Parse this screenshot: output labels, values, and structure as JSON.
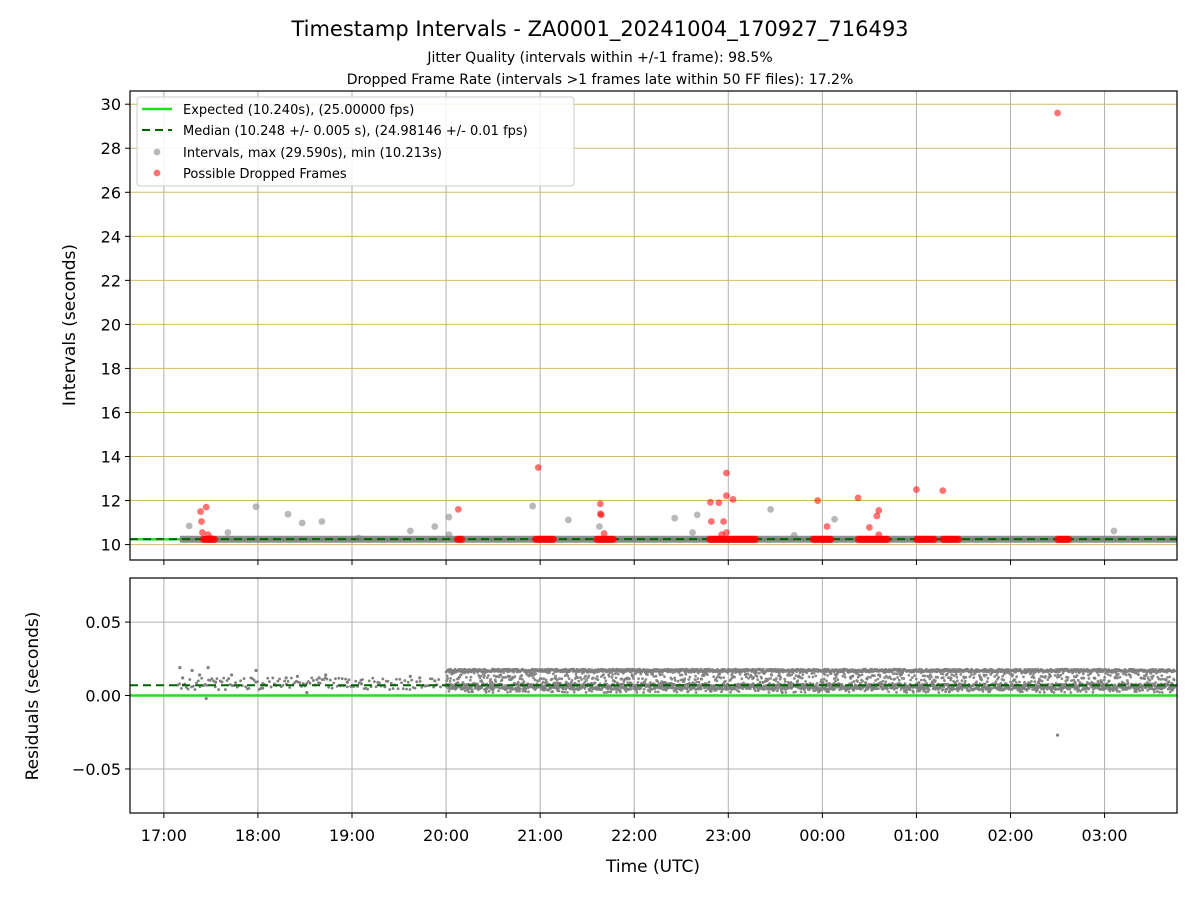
{
  "chart_data": [
    {
      "type": "scatter",
      "title": "Timestamp Intervals - ZA0001_20241004_170927_716493",
      "subtitle_lines": [
        "Jitter Quality (intervals within +/-1 frame): 98.5%",
        "Dropped Frame Rate (intervals >1 frames late within 50 FF files): 17.2%"
      ],
      "ylabel": "Intervals (seconds)",
      "ylim": [
        9.3,
        30.6
      ],
      "yticks": [
        "10",
        "12",
        "14",
        "16",
        "18",
        "20",
        "22",
        "24",
        "26",
        "28",
        "30"
      ],
      "grid": true,
      "legend_position": "top-left",
      "legend": [
        "Expected (10.240s), (25.00000 fps)",
        "Median (10.248 +/- 0.005 s), (24.98146 +/- 0.01 fps)",
        "Intervals, max (29.590s), min (10.213s)",
        "Possible Dropped Frames"
      ],
      "expected": 10.24,
      "median": 10.248,
      "series": [
        {
          "name": "Intervals, max (29.590s), min (10.213s)",
          "color": "#808080",
          "points": [
            [
              17.27,
              10.85
            ],
            [
              17.5,
              10.3
            ],
            [
              17.68,
              10.55
            ],
            [
              17.98,
              11.72
            ],
            [
              18.32,
              11.38
            ],
            [
              18.47,
              10.98
            ],
            [
              18.68,
              11.05
            ],
            [
              19.07,
              10.3
            ],
            [
              19.62,
              10.62
            ],
            [
              19.88,
              10.82
            ],
            [
              20.03,
              11.25
            ],
            [
              20.03,
              10.45
            ],
            [
              20.92,
              11.75
            ],
            [
              21.3,
              11.12
            ],
            [
              21.63,
              10.82
            ],
            [
              22.43,
              11.2
            ],
            [
              22.62,
              10.55
            ],
            [
              22.67,
              11.35
            ],
            [
              23.45,
              11.6
            ],
            [
              23.7,
              10.42
            ],
            [
              24.13,
              11.15
            ],
            [
              27.1,
              10.62
            ]
          ]
        },
        {
          "name": "Possible Dropped Frames",
          "color": "#ff0000",
          "points": [
            [
              17.39,
              11.5
            ],
            [
              17.4,
              11.05
            ],
            [
              17.41,
              10.55
            ],
            [
              17.45,
              11.7
            ],
            [
              17.47,
              10.45
            ],
            [
              20.13,
              11.6
            ],
            [
              20.98,
              13.5
            ],
            [
              21.64,
              11.85
            ],
            [
              21.64,
              11.4
            ],
            [
              21.65,
              11.35
            ],
            [
              21.68,
              10.5
            ],
            [
              22.82,
              11.05
            ],
            [
              22.81,
              11.92
            ],
            [
              22.9,
              11.9
            ],
            [
              22.95,
              11.05
            ],
            [
              22.98,
              13.25
            ],
            [
              22.98,
              12.22
            ],
            [
              22.93,
              10.45
            ],
            [
              22.98,
              10.55
            ],
            [
              23.05,
              12.05
            ],
            [
              23.95,
              12.0
            ],
            [
              24.05,
              10.82
            ],
            [
              24.38,
              12.12
            ],
            [
              24.5,
              10.78
            ],
            [
              24.58,
              11.3
            ],
            [
              24.6,
              11.55
            ],
            [
              24.6,
              10.45
            ],
            [
              25.0,
              12.5
            ],
            [
              25.28,
              12.45
            ],
            [
              26.5,
              29.6
            ]
          ],
          "clusters_at_10_24": [
            [
              17.42,
              17.55
            ],
            [
              20.12,
              20.17
            ],
            [
              20.95,
              21.15
            ],
            [
              21.6,
              21.78
            ],
            [
              22.8,
              23.3
            ],
            [
              23.9,
              24.1
            ],
            [
              24.38,
              24.7
            ],
            [
              25.0,
              25.2
            ],
            [
              25.28,
              25.45
            ],
            [
              26.5,
              26.62
            ]
          ]
        }
      ]
    },
    {
      "type": "scatter",
      "xlabel": "Time (UTC)",
      "ylabel": "Residuals (seconds)",
      "ylim": [
        -0.08,
        0.08
      ],
      "yticks": [
        "−0.05",
        "0.00",
        "0.05"
      ],
      "xticks": [
        "17:00",
        "18:00",
        "19:00",
        "20:00",
        "21:00",
        "22:00",
        "23:00",
        "00:00",
        "01:00",
        "02:00",
        "03:00"
      ],
      "grid": true,
      "expected": 0.0,
      "median": 0.007,
      "series": [
        {
          "name": "Residuals",
          "color": "#808080",
          "points": [
            [
              17.17,
              0.019
            ],
            [
              17.2,
              0.012
            ],
            [
              17.3,
              0.017
            ],
            [
              17.38,
              0.014
            ],
            [
              17.45,
              -0.002
            ],
            [
              17.47,
              0.019
            ],
            [
              17.55,
              0.009
            ],
            [
              17.72,
              0.014
            ],
            [
              17.98,
              0.017
            ],
            [
              18.05,
              0.005
            ],
            [
              18.3,
              0.012
            ],
            [
              18.42,
              0.013
            ],
            [
              18.52,
              0.002
            ],
            [
              18.65,
              0.012
            ],
            [
              18.72,
              0.014
            ],
            [
              18.95,
              0.009
            ],
            [
              19.1,
              0.008
            ],
            [
              19.35,
              0.006
            ],
            [
              19.62,
              0.013
            ],
            [
              19.72,
              0.012
            ],
            [
              19.88,
              0.01
            ],
            [
              26.5,
              -0.027
            ]
          ],
          "dense_band": {
            "x_range": [
              20.0,
              27.75
            ],
            "y_range": [
              0.002,
              0.017
            ]
          }
        }
      ]
    }
  ]
}
